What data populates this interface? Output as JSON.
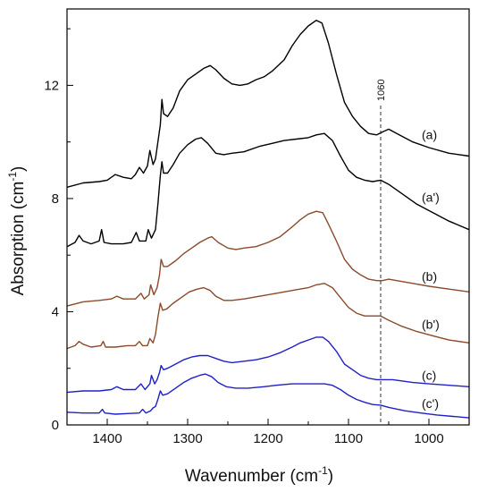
{
  "chart_data": {
    "type": "line",
    "xlabel": "Wavenumber (cm",
    "xlabel_sup": "-1",
    "xlabel_end": ")",
    "ylabel": "Absorption (cm",
    "ylabel_sup": "-1",
    "ylabel_end": ")",
    "xlim": [
      1450,
      950
    ],
    "ylim": [
      0,
      14.7
    ],
    "x_reversed": true,
    "x_ticks": [
      1400,
      1300,
      1200,
      1100,
      1000
    ],
    "y_ticks": [
      0,
      4,
      8,
      12
    ],
    "grid": false,
    "annotation": {
      "x": 1060,
      "label": "1060",
      "style": "dashed"
    },
    "series": [
      {
        "label": "(a)",
        "color": "#000000",
        "points": [
          [
            1450,
            8.4
          ],
          [
            1430,
            8.55
          ],
          [
            1410,
            8.6
          ],
          [
            1400,
            8.65
          ],
          [
            1390,
            8.85
          ],
          [
            1380,
            8.75
          ],
          [
            1370,
            8.7
          ],
          [
            1365,
            8.85
          ],
          [
            1360,
            9.1
          ],
          [
            1355,
            8.9
          ],
          [
            1350,
            9.15
          ],
          [
            1347,
            9.7
          ],
          [
            1343,
            9.2
          ],
          [
            1340,
            9.4
          ],
          [
            1337,
            10.0
          ],
          [
            1334,
            10.6
          ],
          [
            1332,
            11.5
          ],
          [
            1330,
            11.0
          ],
          [
            1325,
            10.9
          ],
          [
            1318,
            11.2
          ],
          [
            1310,
            11.8
          ],
          [
            1300,
            12.2
          ],
          [
            1290,
            12.4
          ],
          [
            1280,
            12.6
          ],
          [
            1272,
            12.7
          ],
          [
            1265,
            12.55
          ],
          [
            1255,
            12.25
          ],
          [
            1245,
            12.05
          ],
          [
            1235,
            12.0
          ],
          [
            1225,
            12.05
          ],
          [
            1215,
            12.2
          ],
          [
            1205,
            12.3
          ],
          [
            1195,
            12.5
          ],
          [
            1180,
            12.9
          ],
          [
            1170,
            13.4
          ],
          [
            1160,
            13.8
          ],
          [
            1150,
            14.1
          ],
          [
            1140,
            14.3
          ],
          [
            1133,
            14.2
          ],
          [
            1125,
            13.5
          ],
          [
            1115,
            12.4
          ],
          [
            1105,
            11.4
          ],
          [
            1095,
            10.9
          ],
          [
            1085,
            10.55
          ],
          [
            1075,
            10.3
          ],
          [
            1065,
            10.25
          ],
          [
            1058,
            10.35
          ],
          [
            1050,
            10.45
          ],
          [
            1040,
            10.3
          ],
          [
            1020,
            10.0
          ],
          [
            1000,
            9.8
          ],
          [
            975,
            9.6
          ],
          [
            950,
            9.5
          ]
        ]
      },
      {
        "label": "(a')",
        "color": "#000000",
        "points": [
          [
            1450,
            6.3
          ],
          [
            1440,
            6.45
          ],
          [
            1435,
            6.7
          ],
          [
            1430,
            6.5
          ],
          [
            1420,
            6.4
          ],
          [
            1410,
            6.5
          ],
          [
            1407,
            6.9
          ],
          [
            1404,
            6.45
          ],
          [
            1395,
            6.4
          ],
          [
            1380,
            6.4
          ],
          [
            1370,
            6.45
          ],
          [
            1364,
            6.8
          ],
          [
            1360,
            6.5
          ],
          [
            1352,
            6.5
          ],
          [
            1349,
            6.9
          ],
          [
            1345,
            6.6
          ],
          [
            1340,
            6.9
          ],
          [
            1337,
            7.8
          ],
          [
            1334,
            8.8
          ],
          [
            1332,
            9.3
          ],
          [
            1330,
            8.9
          ],
          [
            1325,
            8.9
          ],
          [
            1318,
            9.2
          ],
          [
            1310,
            9.6
          ],
          [
            1300,
            9.9
          ],
          [
            1290,
            10.1
          ],
          [
            1283,
            10.15
          ],
          [
            1275,
            9.95
          ],
          [
            1265,
            9.6
          ],
          [
            1255,
            9.55
          ],
          [
            1245,
            9.6
          ],
          [
            1230,
            9.65
          ],
          [
            1210,
            9.85
          ],
          [
            1195,
            9.95
          ],
          [
            1180,
            10.05
          ],
          [
            1165,
            10.1
          ],
          [
            1150,
            10.15
          ],
          [
            1140,
            10.25
          ],
          [
            1130,
            10.3
          ],
          [
            1120,
            10.05
          ],
          [
            1110,
            9.5
          ],
          [
            1100,
            9.0
          ],
          [
            1090,
            8.75
          ],
          [
            1080,
            8.65
          ],
          [
            1070,
            8.6
          ],
          [
            1060,
            8.65
          ],
          [
            1050,
            8.5
          ],
          [
            1035,
            8.2
          ],
          [
            1015,
            7.8
          ],
          [
            995,
            7.5
          ],
          [
            975,
            7.2
          ],
          [
            950,
            6.9
          ]
        ]
      },
      {
        "label": "(b)",
        "color": "#8b4a2b",
        "points": [
          [
            1450,
            4.2
          ],
          [
            1430,
            4.35
          ],
          [
            1410,
            4.4
          ],
          [
            1395,
            4.45
          ],
          [
            1388,
            4.55
          ],
          [
            1380,
            4.45
          ],
          [
            1365,
            4.45
          ],
          [
            1358,
            4.65
          ],
          [
            1354,
            4.45
          ],
          [
            1348,
            4.6
          ],
          [
            1346,
            4.95
          ],
          [
            1342,
            4.6
          ],
          [
            1338,
            4.85
          ],
          [
            1335,
            5.3
          ],
          [
            1333,
            5.85
          ],
          [
            1330,
            5.6
          ],
          [
            1325,
            5.6
          ],
          [
            1315,
            5.8
          ],
          [
            1305,
            6.05
          ],
          [
            1295,
            6.25
          ],
          [
            1285,
            6.45
          ],
          [
            1275,
            6.6
          ],
          [
            1270,
            6.65
          ],
          [
            1262,
            6.45
          ],
          [
            1250,
            6.25
          ],
          [
            1240,
            6.2
          ],
          [
            1230,
            6.25
          ],
          [
            1215,
            6.3
          ],
          [
            1200,
            6.45
          ],
          [
            1185,
            6.65
          ],
          [
            1170,
            7.0
          ],
          [
            1160,
            7.25
          ],
          [
            1150,
            7.45
          ],
          [
            1140,
            7.55
          ],
          [
            1132,
            7.5
          ],
          [
            1125,
            7.1
          ],
          [
            1115,
            6.5
          ],
          [
            1105,
            5.85
          ],
          [
            1095,
            5.5
          ],
          [
            1085,
            5.3
          ],
          [
            1075,
            5.15
          ],
          [
            1065,
            5.1
          ],
          [
            1058,
            5.1
          ],
          [
            1050,
            5.15
          ],
          [
            1040,
            5.1
          ],
          [
            1020,
            5.0
          ],
          [
            1000,
            4.9
          ],
          [
            975,
            4.8
          ],
          [
            950,
            4.7
          ]
        ]
      },
      {
        "label": "(b')",
        "color": "#8b4a2b",
        "points": [
          [
            1450,
            2.7
          ],
          [
            1440,
            2.8
          ],
          [
            1435,
            2.95
          ],
          [
            1430,
            2.85
          ],
          [
            1420,
            2.75
          ],
          [
            1408,
            2.8
          ],
          [
            1405,
            2.95
          ],
          [
            1402,
            2.75
          ],
          [
            1390,
            2.75
          ],
          [
            1375,
            2.8
          ],
          [
            1365,
            2.8
          ],
          [
            1360,
            2.95
          ],
          [
            1356,
            2.8
          ],
          [
            1350,
            2.8
          ],
          [
            1347,
            3.05
          ],
          [
            1343,
            2.9
          ],
          [
            1340,
            3.2
          ],
          [
            1337,
            3.8
          ],
          [
            1334,
            4.3
          ],
          [
            1331,
            4.05
          ],
          [
            1326,
            4.1
          ],
          [
            1318,
            4.3
          ],
          [
            1308,
            4.5
          ],
          [
            1298,
            4.7
          ],
          [
            1288,
            4.8
          ],
          [
            1280,
            4.85
          ],
          [
            1272,
            4.75
          ],
          [
            1265,
            4.55
          ],
          [
            1255,
            4.4
          ],
          [
            1245,
            4.4
          ],
          [
            1230,
            4.45
          ],
          [
            1210,
            4.55
          ],
          [
            1190,
            4.65
          ],
          [
            1170,
            4.75
          ],
          [
            1150,
            4.85
          ],
          [
            1140,
            4.95
          ],
          [
            1130,
            5.0
          ],
          [
            1120,
            4.85
          ],
          [
            1110,
            4.5
          ],
          [
            1100,
            4.15
          ],
          [
            1090,
            3.95
          ],
          [
            1080,
            3.85
          ],
          [
            1068,
            3.85
          ],
          [
            1060,
            3.85
          ],
          [
            1050,
            3.7
          ],
          [
            1035,
            3.5
          ],
          [
            1015,
            3.3
          ],
          [
            995,
            3.15
          ],
          [
            975,
            3.0
          ],
          [
            950,
            2.9
          ]
        ]
      },
      {
        "label": "(c)",
        "color": "#2020c8",
        "points": [
          [
            1450,
            1.15
          ],
          [
            1430,
            1.2
          ],
          [
            1410,
            1.2
          ],
          [
            1395,
            1.25
          ],
          [
            1388,
            1.35
          ],
          [
            1380,
            1.25
          ],
          [
            1365,
            1.25
          ],
          [
            1358,
            1.45
          ],
          [
            1353,
            1.25
          ],
          [
            1347,
            1.45
          ],
          [
            1345,
            1.75
          ],
          [
            1341,
            1.45
          ],
          [
            1338,
            1.6
          ],
          [
            1335,
            1.85
          ],
          [
            1333,
            2.1
          ],
          [
            1330,
            1.95
          ],
          [
            1325,
            2.0
          ],
          [
            1315,
            2.15
          ],
          [
            1305,
            2.3
          ],
          [
            1295,
            2.4
          ],
          [
            1285,
            2.45
          ],
          [
            1275,
            2.45
          ],
          [
            1265,
            2.35
          ],
          [
            1255,
            2.25
          ],
          [
            1245,
            2.2
          ],
          [
            1230,
            2.25
          ],
          [
            1215,
            2.3
          ],
          [
            1200,
            2.4
          ],
          [
            1185,
            2.55
          ],
          [
            1170,
            2.75
          ],
          [
            1160,
            2.9
          ],
          [
            1150,
            3.0
          ],
          [
            1140,
            3.1
          ],
          [
            1132,
            3.1
          ],
          [
            1125,
            2.95
          ],
          [
            1115,
            2.6
          ],
          [
            1105,
            2.15
          ],
          [
            1095,
            1.95
          ],
          [
            1085,
            1.75
          ],
          [
            1075,
            1.65
          ],
          [
            1065,
            1.6
          ],
          [
            1055,
            1.6
          ],
          [
            1045,
            1.6
          ],
          [
            1020,
            1.5
          ],
          [
            1000,
            1.45
          ],
          [
            975,
            1.4
          ],
          [
            950,
            1.35
          ]
        ]
      },
      {
        "label": "(c')",
        "color": "#2020c8",
        "points": [
          [
            1450,
            0.45
          ],
          [
            1430,
            0.42
          ],
          [
            1410,
            0.42
          ],
          [
            1406,
            0.55
          ],
          [
            1403,
            0.42
          ],
          [
            1390,
            0.38
          ],
          [
            1375,
            0.4
          ],
          [
            1360,
            0.42
          ],
          [
            1356,
            0.55
          ],
          [
            1352,
            0.42
          ],
          [
            1346,
            0.5
          ],
          [
            1343,
            0.6
          ],
          [
            1340,
            0.65
          ],
          [
            1337,
            0.9
          ],
          [
            1334,
            1.2
          ],
          [
            1331,
            1.05
          ],
          [
            1325,
            1.1
          ],
          [
            1315,
            1.3
          ],
          [
            1305,
            1.5
          ],
          [
            1295,
            1.65
          ],
          [
            1285,
            1.75
          ],
          [
            1278,
            1.8
          ],
          [
            1270,
            1.7
          ],
          [
            1262,
            1.5
          ],
          [
            1252,
            1.35
          ],
          [
            1240,
            1.3
          ],
          [
            1225,
            1.3
          ],
          [
            1205,
            1.35
          ],
          [
            1190,
            1.4
          ],
          [
            1170,
            1.45
          ],
          [
            1150,
            1.45
          ],
          [
            1130,
            1.45
          ],
          [
            1120,
            1.4
          ],
          [
            1110,
            1.25
          ],
          [
            1100,
            1.05
          ],
          [
            1090,
            0.9
          ],
          [
            1080,
            0.8
          ],
          [
            1070,
            0.72
          ],
          [
            1060,
            0.7
          ],
          [
            1050,
            0.62
          ],
          [
            1030,
            0.5
          ],
          [
            1010,
            0.42
          ],
          [
            990,
            0.35
          ],
          [
            970,
            0.3
          ],
          [
            950,
            0.25
          ]
        ]
      }
    ]
  }
}
